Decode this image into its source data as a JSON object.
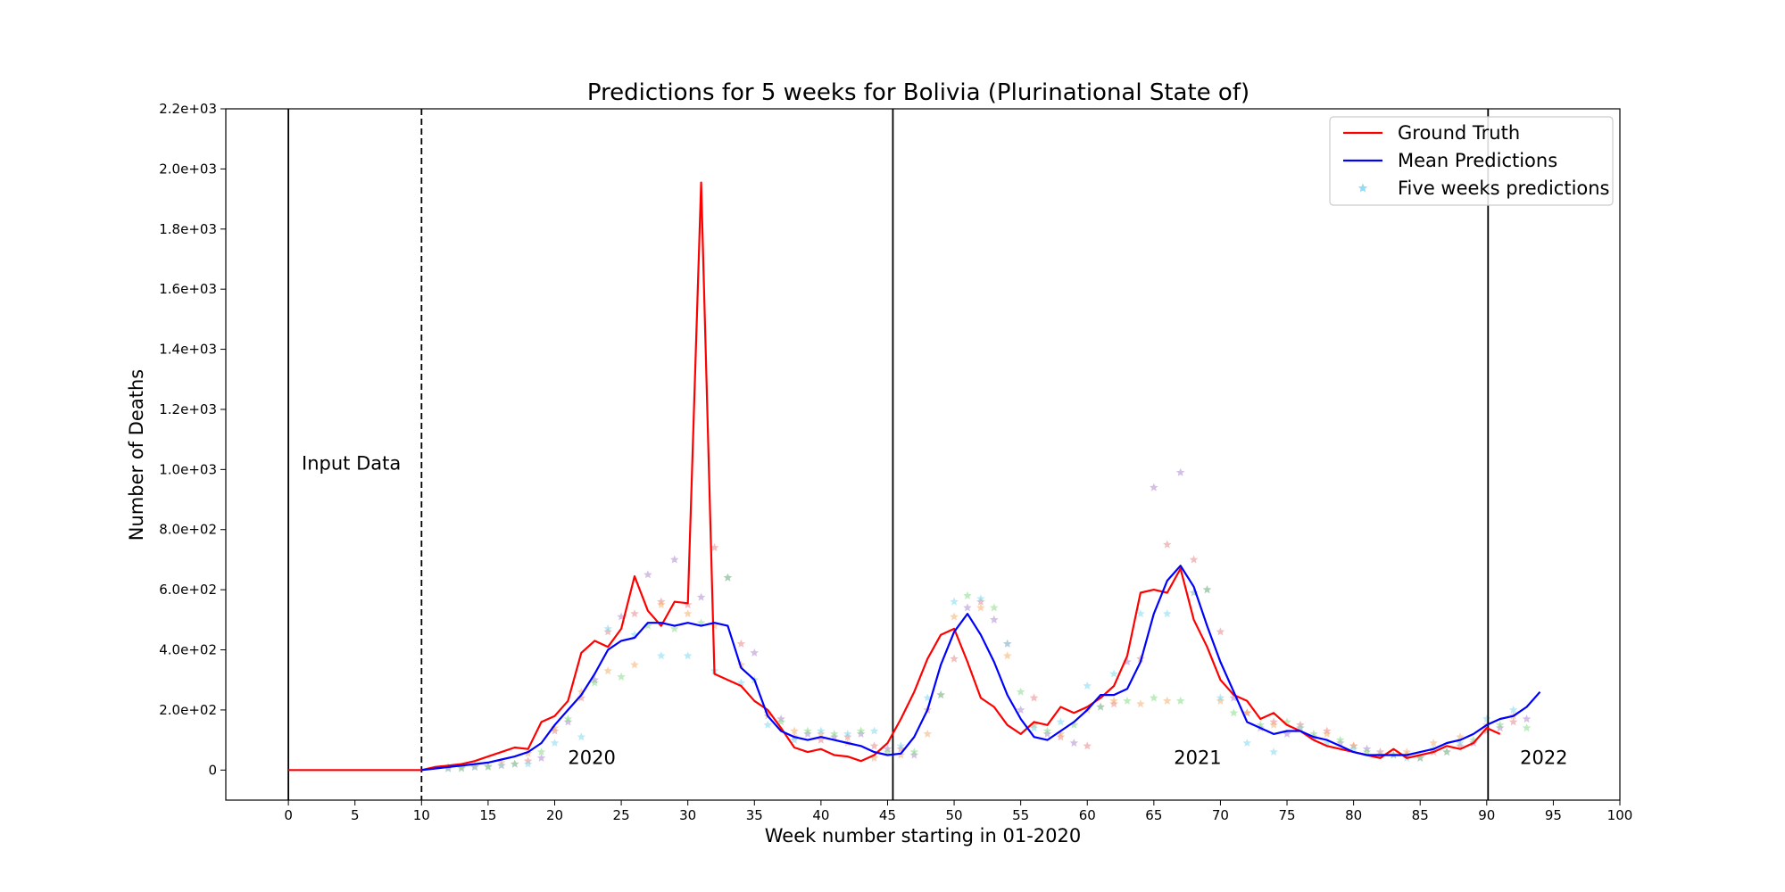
{
  "chart_data": {
    "type": "line",
    "title": "Predictions for 5 weeks for Bolivia (Plurinational State of)",
    "xlabel": "Week number starting in 01-2020",
    "ylabel": "Number of Deaths",
    "xlim": [
      -4.7,
      100
    ],
    "ylim": [
      -100,
      2200
    ],
    "x_ticks": [
      0,
      5,
      10,
      15,
      20,
      25,
      30,
      35,
      40,
      45,
      50,
      55,
      60,
      65,
      70,
      75,
      80,
      85,
      90,
      95,
      100
    ],
    "x_tick_labels": [
      "0",
      "5",
      "10",
      "15",
      "20",
      "25",
      "30",
      "35",
      "40",
      "45",
      "50",
      "55",
      "60",
      "65",
      "70",
      "75",
      "80",
      "85",
      "90",
      "95",
      "100"
    ],
    "y_ticks": [
      0,
      200,
      400,
      600,
      800,
      1000,
      1200,
      1400,
      1600,
      1800,
      2000,
      2200
    ],
    "y_tick_labels": [
      "0",
      "2.0e+02",
      "4.0e+02",
      "6.0e+02",
      "8.0e+02",
      "1.0e+03",
      "1.2e+03",
      "1.4e+03",
      "1.6e+03",
      "1.8e+03",
      "2.0e+03",
      "2.2e+03"
    ],
    "grid": false,
    "legend_position": "top-right",
    "vertical_lines": [
      {
        "x": 0,
        "style": "solid"
      },
      {
        "x": 10,
        "style": "dashed"
      },
      {
        "x": 45.4,
        "style": "solid"
      },
      {
        "x": 90.1,
        "style": "solid"
      }
    ],
    "annotations": [
      {
        "text": "Input Data",
        "x": 1,
        "y": 1000
      },
      {
        "text": "2020",
        "x": 21,
        "y": 20
      },
      {
        "text": "2021",
        "x": 66.5,
        "y": 20
      },
      {
        "text": "2022",
        "x": 92.5,
        "y": 20
      }
    ],
    "series": [
      {
        "name": "Ground Truth",
        "kind": "line",
        "color": "#ff0000",
        "x": [
          0,
          1,
          2,
          3,
          4,
          5,
          6,
          7,
          8,
          9,
          10,
          11,
          12,
          13,
          14,
          15,
          16,
          17,
          18,
          19,
          20,
          21,
          22,
          23,
          24,
          25,
          26,
          27,
          28,
          29,
          30,
          31,
          32,
          33,
          34,
          35,
          36,
          37,
          38,
          39,
          40,
          41,
          42,
          43,
          44,
          45,
          46,
          47,
          48,
          49,
          50,
          51,
          52,
          53,
          54,
          55,
          56,
          57,
          58,
          59,
          60,
          61,
          62,
          63,
          64,
          65,
          66,
          67,
          68,
          69,
          70,
          71,
          72,
          73,
          74,
          75,
          76,
          77,
          78,
          79,
          80,
          81,
          82,
          83,
          84,
          85,
          86,
          87,
          88,
          89,
          90,
          91
        ],
        "y": [
          0,
          0,
          0,
          0,
          0,
          0,
          0,
          0,
          0,
          0,
          0,
          10,
          15,
          20,
          30,
          45,
          60,
          75,
          70,
          160,
          180,
          230,
          390,
          430,
          410,
          470,
          645,
          530,
          480,
          560,
          555,
          1955,
          320,
          300,
          280,
          230,
          200,
          140,
          75,
          60,
          70,
          50,
          45,
          30,
          50,
          90,
          170,
          260,
          370,
          450,
          470,
          360,
          240,
          210,
          150,
          120,
          160,
          150,
          210,
          190,
          210,
          240,
          280,
          380,
          590,
          600,
          590,
          670,
          500,
          410,
          300,
          250,
          230,
          170,
          190,
          150,
          130,
          100,
          80,
          70,
          60,
          50,
          40,
          70,
          40,
          50,
          60,
          80,
          70,
          90,
          140,
          120
        ]
      },
      {
        "name": "Mean Predictions",
        "kind": "line",
        "color": "#0000ff",
        "x": [
          10,
          11,
          12,
          13,
          14,
          15,
          16,
          17,
          18,
          19,
          20,
          21,
          22,
          23,
          24,
          25,
          26,
          27,
          28,
          29,
          30,
          31,
          32,
          33,
          34,
          35,
          36,
          37,
          38,
          39,
          40,
          41,
          42,
          43,
          44,
          45,
          46,
          47,
          48,
          49,
          50,
          51,
          52,
          53,
          54,
          55,
          56,
          57,
          58,
          59,
          60,
          61,
          62,
          63,
          64,
          65,
          66,
          67,
          68,
          69,
          70,
          71,
          72,
          73,
          74,
          75,
          76,
          77,
          78,
          79,
          80,
          81,
          82,
          83,
          84,
          85,
          86,
          87,
          88,
          89,
          90,
          91,
          92,
          93,
          94
        ],
        "y": [
          0,
          5,
          10,
          15,
          20,
          25,
          35,
          45,
          60,
          90,
          150,
          200,
          250,
          320,
          400,
          430,
          440,
          490,
          490,
          480,
          490,
          480,
          490,
          480,
          340,
          300,
          180,
          130,
          110,
          100,
          110,
          100,
          90,
          80,
          60,
          50,
          55,
          110,
          200,
          350,
          460,
          520,
          450,
          360,
          250,
          170,
          110,
          100,
          130,
          160,
          200,
          250,
          250,
          270,
          360,
          520,
          630,
          680,
          610,
          480,
          360,
          260,
          160,
          140,
          120,
          130,
          130,
          110,
          100,
          80,
          60,
          50,
          50,
          50,
          50,
          60,
          70,
          90,
          100,
          120,
          150,
          170,
          180,
          210,
          260
        ]
      },
      {
        "name": "Five weeks predictions",
        "kind": "scatter",
        "marker": "star",
        "color": "#66ccee",
        "x": [],
        "y": []
      }
    ],
    "scatter_clouds": [
      {
        "color": "#e8888a",
        "x": [
          12,
          14,
          16,
          18,
          20,
          22,
          24,
          26,
          28,
          30,
          32,
          34,
          36,
          38,
          40,
          42,
          44,
          46,
          48,
          50,
          52,
          54,
          56,
          58,
          60,
          62,
          64,
          66,
          68,
          70,
          72,
          74,
          76,
          78,
          80,
          82,
          84,
          86,
          88,
          90,
          92
        ],
        "y": [
          5,
          10,
          15,
          30,
          130,
          240,
          460,
          520,
          560,
          550,
          740,
          420,
          190,
          110,
          100,
          110,
          80,
          70,
          200,
          370,
          560,
          420,
          240,
          110,
          80,
          220,
          370,
          750,
          700,
          460,
          190,
          160,
          150,
          130,
          80,
          60,
          50,
          60,
          80,
          130,
          160
        ]
      },
      {
        "color": "#b08ad0",
        "x": [
          13,
          15,
          17,
          19,
          21,
          23,
          25,
          27,
          29,
          31,
          33,
          35,
          37,
          39,
          41,
          43,
          45,
          47,
          49,
          51,
          53,
          55,
          57,
          59,
          61,
          63,
          65,
          67,
          69,
          71,
          73,
          75,
          77,
          79,
          81,
          83,
          85,
          87,
          89,
          91,
          93
        ],
        "y": [
          8,
          12,
          20,
          40,
          160,
          300,
          510,
          650,
          700,
          575,
          640,
          390,
          170,
          120,
          110,
          120,
          70,
          50,
          250,
          540,
          500,
          200,
          120,
          90,
          210,
          360,
          940,
          990,
          600,
          240,
          140,
          120,
          110,
          90,
          70,
          50,
          40,
          60,
          90,
          140,
          170
        ]
      },
      {
        "color": "#f3b070",
        "x": [
          12,
          14,
          16,
          18,
          20,
          22,
          24,
          26,
          28,
          30,
          32,
          34,
          36,
          38,
          40,
          42,
          44,
          46,
          48,
          50,
          52,
          54,
          56,
          58,
          60,
          62,
          64,
          66,
          68,
          70,
          72,
          74,
          76,
          78,
          80,
          82,
          84,
          86,
          88,
          90,
          92
        ],
        "y": [
          10,
          15,
          25,
          55,
          140,
          260,
          330,
          350,
          550,
          520,
          480,
          350,
          180,
          130,
          120,
          90,
          40,
          50,
          120,
          510,
          540,
          380,
          150,
          120,
          200,
          230,
          220,
          230,
          590,
          230,
          190,
          150,
          140,
          120,
          80,
          50,
          60,
          90,
          110,
          150,
          180
        ]
      },
      {
        "color": "#88dd88",
        "x": [
          13,
          15,
          17,
          19,
          21,
          23,
          25,
          27,
          29,
          31,
          33,
          35,
          37,
          39,
          41,
          43,
          45,
          47,
          49,
          51,
          53,
          55,
          57,
          59,
          61,
          63,
          65,
          67,
          69,
          71,
          73,
          75,
          77,
          79,
          81,
          83,
          85,
          87,
          89,
          91,
          93
        ],
        "y": [
          5,
          10,
          20,
          60,
          170,
          290,
          310,
          480,
          470,
          490,
          640,
          300,
          160,
          130,
          120,
          130,
          60,
          60,
          250,
          580,
          540,
          260,
          130,
          150,
          210,
          230,
          240,
          230,
          600,
          190,
          150,
          160,
          120,
          100,
          60,
          50,
          40,
          60,
          100,
          150,
          140
        ]
      },
      {
        "color": "#7fd8f0",
        "x": [
          12,
          14,
          16,
          18,
          20,
          22,
          24,
          26,
          28,
          30,
          32,
          34,
          36,
          38,
          40,
          42,
          44,
          46,
          48,
          50,
          52,
          54,
          56,
          58,
          60,
          62,
          64,
          66,
          68,
          70,
          72,
          74,
          76,
          78,
          80,
          82,
          84,
          86,
          88,
          90,
          92
        ],
        "y": [
          5,
          10,
          15,
          20,
          90,
          110,
          470,
          450,
          380,
          380,
          330,
          290,
          150,
          100,
          130,
          120,
          130,
          80,
          240,
          560,
          570,
          420,
          140,
          160,
          280,
          320,
          520,
          520,
          590,
          240,
          90,
          60,
          140,
          90,
          70,
          50,
          40,
          70,
          90,
          170,
          200
        ]
      }
    ]
  },
  "legend": {
    "items": [
      {
        "label": "Ground Truth",
        "color": "#ff0000",
        "kind": "line"
      },
      {
        "label": "Mean Predictions",
        "color": "#0000ff",
        "kind": "line"
      },
      {
        "label": "Five weeks predictions",
        "color": "#66ccee",
        "kind": "star"
      }
    ]
  }
}
